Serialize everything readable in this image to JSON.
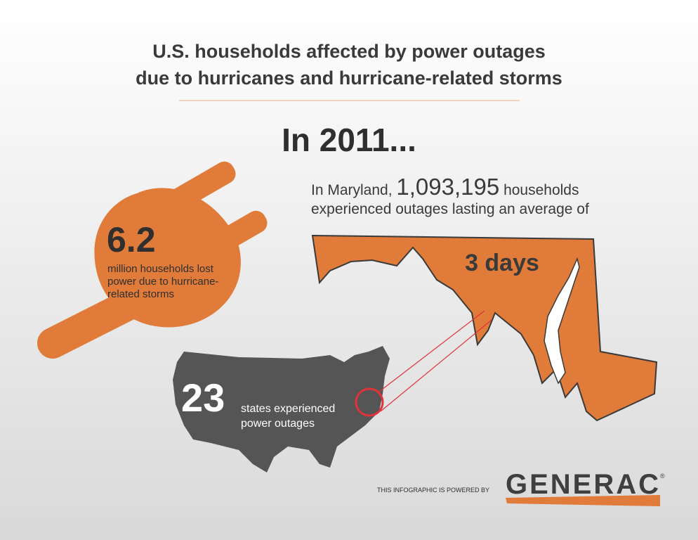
{
  "title": {
    "lines": [
      "U.S. households affected by power outages",
      "due to hurricanes and hurricane-related storms"
    ]
  },
  "headline": "In 2011...",
  "maryland": {
    "prefix": "In Maryland,",
    "number": "1,093,195",
    "suffix": "households",
    "line2": "experienced outages lasting an average of",
    "duration": "3 days"
  },
  "plug": {
    "number": "6.2",
    "lines": [
      "million households lost",
      "power due to hurricane-",
      "related storms"
    ]
  },
  "us": {
    "number": "23",
    "lines": [
      "states experienced",
      "power outages"
    ]
  },
  "footer": {
    "powered_by": "THIS INFOGRAPHIC IS POWERED BY",
    "brand": "GENERAC",
    "mark": "®"
  }
}
